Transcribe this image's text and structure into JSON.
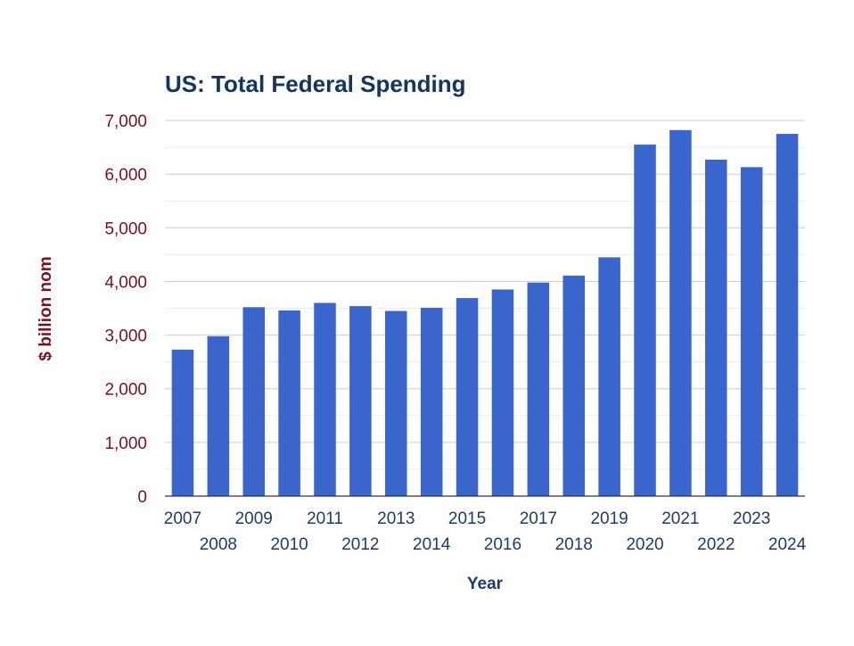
{
  "chart_data": {
    "type": "bar",
    "title": "US: Total Federal Spending",
    "xlabel": "Year",
    "ylabel": "$ billion nom",
    "categories": [
      "2007",
      "2008",
      "2009",
      "2010",
      "2011",
      "2012",
      "2013",
      "2014",
      "2015",
      "2016",
      "2017",
      "2018",
      "2019",
      "2020",
      "2021",
      "2022",
      "2023",
      "2024"
    ],
    "values": [
      2730,
      2980,
      3520,
      3460,
      3600,
      3540,
      3450,
      3510,
      3690,
      3850,
      3980,
      4110,
      4450,
      6550,
      6820,
      6270,
      6130,
      6750
    ],
    "ylim": [
      0,
      7000
    ],
    "yticks": [
      "0",
      "1,000",
      "2,000",
      "3,000",
      "4,000",
      "5,000",
      "6,000",
      "7,000"
    ],
    "grid": true,
    "legend": "none"
  },
  "colors": {
    "bar": "#3965cc",
    "title": "#123660",
    "ytick": "#7a1020",
    "ylabel": "#7a1020",
    "xtick": "#1e3a6e",
    "xlabel": "#1e3a6e",
    "grid": "#cccccc",
    "minor_grid": "#ebebeb",
    "axis": "#333333"
  }
}
